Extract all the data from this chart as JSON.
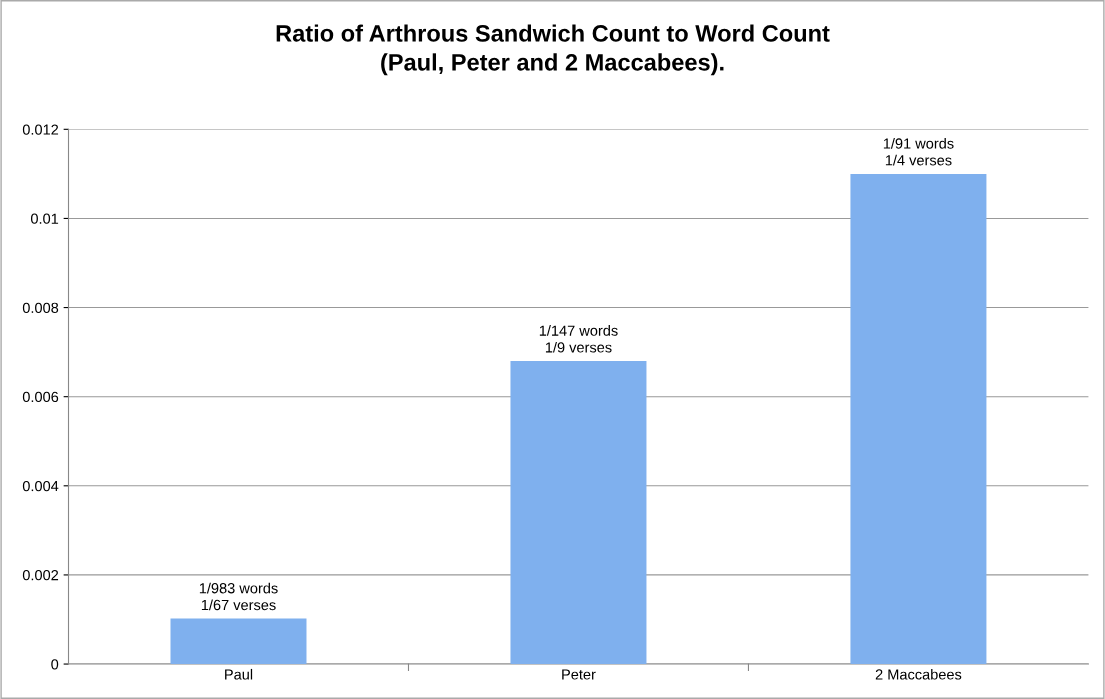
{
  "chart_data": {
    "type": "bar",
    "title": "Ratio of Arthrous Sandwich Count to Word Count\n(Paul, Peter and 2 Maccabees).",
    "categories": [
      "Paul",
      "Peter",
      "2 Maccabees"
    ],
    "values": [
      0.00102,
      0.0068,
      0.011
    ],
    "value_labels": [
      "1/983 words\n1/67 verses",
      "1/147 words\n1/9 verses",
      "1/91 words\n1/4 verses"
    ],
    "color": "#7fb0ee",
    "ylim": [
      0,
      0.012
    ],
    "yticks": [
      0,
      0.002,
      0.004,
      0.006,
      0.008,
      0.01,
      0.012
    ],
    "grid": "y",
    "legend": false
  }
}
